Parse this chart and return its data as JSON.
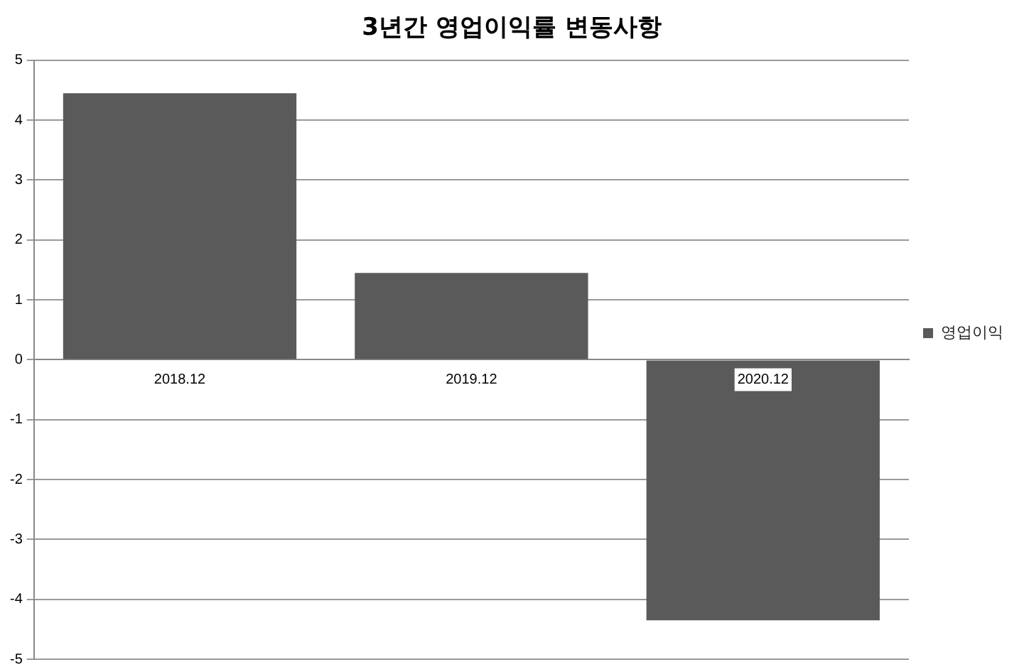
{
  "chart_data": {
    "type": "bar",
    "title": "3년간 영업이익률 변동사항",
    "categories": [
      "2018.12",
      "2019.12",
      "2020.12"
    ],
    "series": [
      {
        "name": "영업이익",
        "color": "#5a5a5a",
        "values": [
          4.45,
          1.45,
          -4.35
        ]
      }
    ],
    "ylim": [
      -5,
      5
    ],
    "yticks": [
      -5,
      -4,
      -3,
      -2,
      -1,
      0,
      1,
      2,
      3,
      4,
      5
    ],
    "grid": "y",
    "legend": "right"
  }
}
